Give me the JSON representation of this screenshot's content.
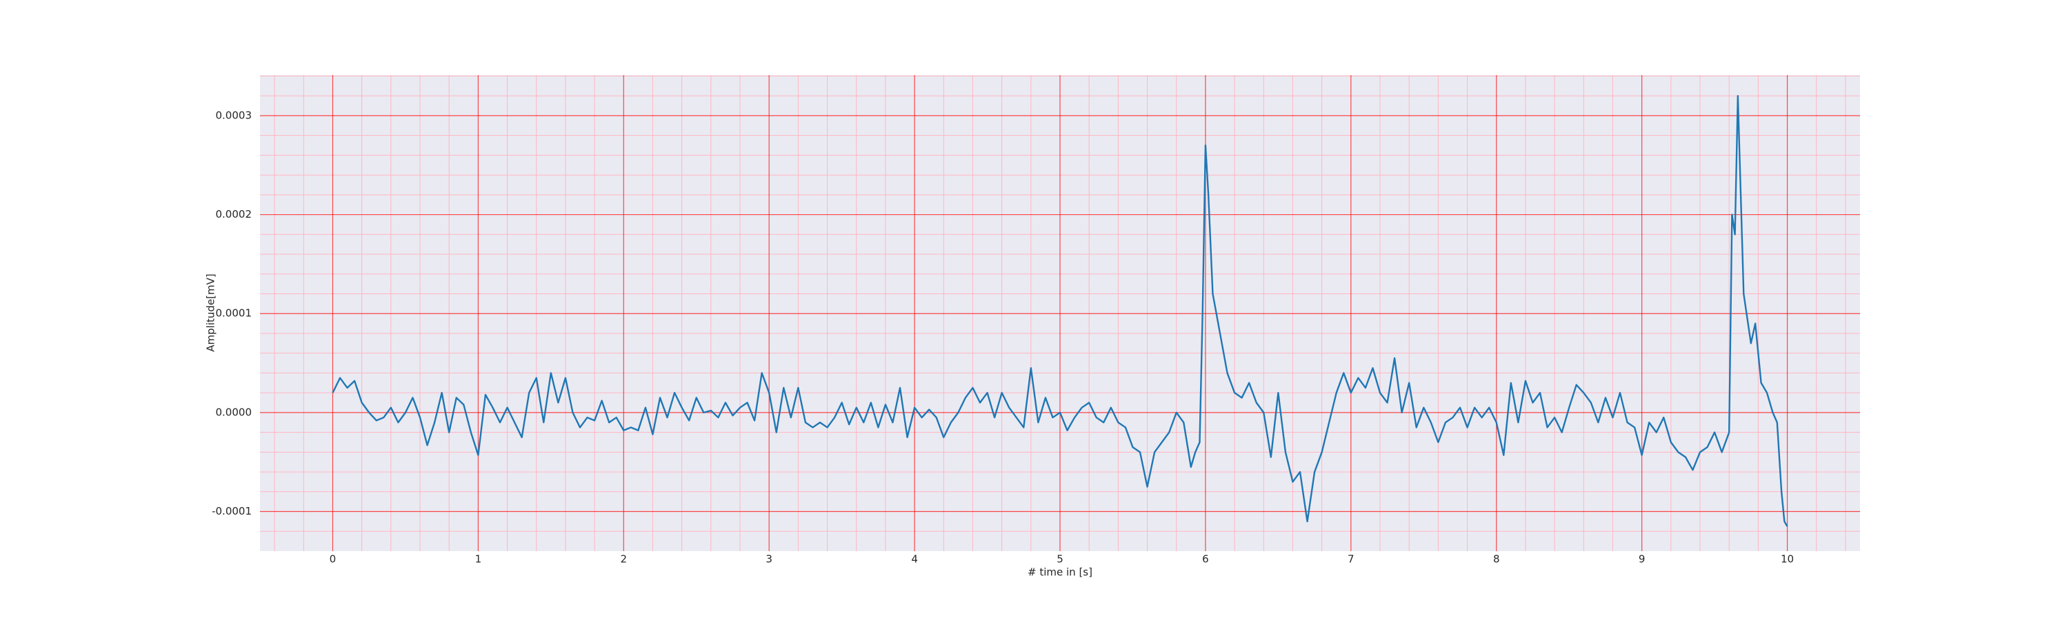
{
  "chart_data": {
    "type": "line",
    "xlabel": "# time in [s]",
    "ylabel": "Amplitude[mV]",
    "x": [
      0,
      0.05,
      0.1,
      0.15,
      0.2,
      0.25,
      0.3,
      0.35,
      0.4,
      0.45,
      0.5,
      0.55,
      0.6,
      0.65,
      0.7,
      0.75,
      0.8,
      0.85,
      0.9,
      0.95,
      1.0,
      1.05,
      1.1,
      1.15,
      1.2,
      1.25,
      1.3,
      1.35,
      1.4,
      1.45,
      1.5,
      1.55,
      1.6,
      1.65,
      1.7,
      1.75,
      1.8,
      1.85,
      1.9,
      1.95,
      2.0,
      2.05,
      2.1,
      2.15,
      2.2,
      2.25,
      2.3,
      2.35,
      2.4,
      2.45,
      2.5,
      2.55,
      2.6,
      2.65,
      2.7,
      2.75,
      2.8,
      2.85,
      2.9,
      2.95,
      3.0,
      3.05,
      3.1,
      3.15,
      3.2,
      3.25,
      3.3,
      3.35,
      3.4,
      3.45,
      3.5,
      3.55,
      3.6,
      3.65,
      3.7,
      3.75,
      3.8,
      3.85,
      3.9,
      3.95,
      4.0,
      4.05,
      4.1,
      4.15,
      4.2,
      4.25,
      4.3,
      4.35,
      4.4,
      4.45,
      4.5,
      4.55,
      4.6,
      4.65,
      4.7,
      4.75,
      4.8,
      4.85,
      4.9,
      4.95,
      5.0,
      5.05,
      5.1,
      5.15,
      5.2,
      5.25,
      5.3,
      5.35,
      5.4,
      5.45,
      5.5,
      5.55,
      5.6,
      5.65,
      5.7,
      5.75,
      5.8,
      5.85,
      5.9,
      5.93,
      5.96,
      5.98,
      6.0,
      6.02,
      6.05,
      6.1,
      6.15,
      6.2,
      6.25,
      6.3,
      6.35,
      6.4,
      6.45,
      6.5,
      6.55,
      6.6,
      6.65,
      6.7,
      6.75,
      6.8,
      6.85,
      6.9,
      6.95,
      7.0,
      7.05,
      7.1,
      7.15,
      7.2,
      7.25,
      7.3,
      7.35,
      7.4,
      7.45,
      7.5,
      7.55,
      7.6,
      7.65,
      7.7,
      7.75,
      7.8,
      7.85,
      7.9,
      7.95,
      8.0,
      8.05,
      8.1,
      8.15,
      8.2,
      8.25,
      8.3,
      8.35,
      8.4,
      8.45,
      8.5,
      8.55,
      8.6,
      8.65,
      8.7,
      8.75,
      8.8,
      8.85,
      8.9,
      8.95,
      9.0,
      9.05,
      9.1,
      9.15,
      9.2,
      9.25,
      9.3,
      9.35,
      9.4,
      9.45,
      9.5,
      9.55,
      9.6,
      9.62,
      9.64,
      9.66,
      9.68,
      9.7,
      9.75,
      9.78,
      9.82,
      9.86,
      9.9,
      9.93,
      9.96,
      9.98,
      10.0
    ],
    "series": [
      {
        "color": "#1f77b4",
        "values": [
          2e-05,
          3.5e-05,
          2.5e-05,
          3.2e-05,
          1e-05,
          0,
          -8e-06,
          -5e-06,
          5e-06,
          -1e-05,
          0,
          1.5e-05,
          -5e-06,
          -3.3e-05,
          -1e-05,
          2e-05,
          -2e-05,
          1.5e-05,
          8e-06,
          -2e-05,
          -4.3e-05,
          1.8e-05,
          5e-06,
          -1e-05,
          5e-06,
          -1e-05,
          -2.5e-05,
          2e-05,
          3.5e-05,
          -1e-05,
          4e-05,
          1e-05,
          3.5e-05,
          0,
          -1.5e-05,
          -5e-06,
          -8e-06,
          1.2e-05,
          -1e-05,
          -5e-06,
          -1.8e-05,
          -1.5e-05,
          -1.8e-05,
          5e-06,
          -2.2e-05,
          1.5e-05,
          -5e-06,
          2e-05,
          5e-06,
          -8e-06,
          1.5e-05,
          0,
          2e-06,
          -5e-06,
          1e-05,
          -3e-06,
          5e-06,
          1e-05,
          -8e-06,
          4e-05,
          2e-05,
          -2e-05,
          2.5e-05,
          -5e-06,
          2.5e-05,
          -1e-05,
          -1.5e-05,
          -1e-05,
          -1.5e-05,
          -5e-06,
          1e-05,
          -1.2e-05,
          5e-06,
          -1e-05,
          1e-05,
          -1.5e-05,
          8e-06,
          -1e-05,
          2.5e-05,
          -2.5e-05,
          5e-06,
          -5e-06,
          3e-06,
          -5e-06,
          -2.5e-05,
          -1e-05,
          0,
          1.5e-05,
          2.5e-05,
          1e-05,
          2e-05,
          -5e-06,
          2e-05,
          5e-06,
          -5e-06,
          -1.5e-05,
          4.5e-05,
          -1e-05,
          1.5e-05,
          -5e-06,
          0,
          -1.8e-05,
          -5e-06,
          5e-06,
          1e-05,
          -5e-06,
          -1e-05,
          5e-06,
          -1e-05,
          -1.5e-05,
          -3.5e-05,
          -4e-05,
          -7.5e-05,
          -4e-05,
          -3e-05,
          -2e-05,
          0,
          -1e-05,
          -5.5e-05,
          -4e-05,
          -3e-05,
          0.0001,
          0.00027,
          0.00022,
          0.00012,
          8e-05,
          4e-05,
          2e-05,
          1.5e-05,
          3e-05,
          1e-05,
          0,
          -4.5e-05,
          2e-05,
          -4e-05,
          -7e-05,
          -6e-05,
          -0.00011,
          -6e-05,
          -4e-05,
          -1e-05,
          2e-05,
          4e-05,
          2e-05,
          3.5e-05,
          2.5e-05,
          4.5e-05,
          2e-05,
          1e-05,
          5.5e-05,
          0,
          3e-05,
          -1.5e-05,
          5e-06,
          -1e-05,
          -3e-05,
          -1e-05,
          -5e-06,
          5e-06,
          -1.5e-05,
          5e-06,
          -5e-06,
          5e-06,
          -1e-05,
          -4.3e-05,
          3e-05,
          -1e-05,
          3.2e-05,
          1e-05,
          2e-05,
          -1.5e-05,
          -5e-06,
          -2e-05,
          5e-06,
          2.8e-05,
          2e-05,
          1e-05,
          -1e-05,
          1.5e-05,
          -5e-06,
          2e-05,
          -1e-05,
          -1.5e-05,
          -4.3e-05,
          -1e-05,
          -2e-05,
          -5e-06,
          -3e-05,
          -4e-05,
          -4.5e-05,
          -5.8e-05,
          -4e-05,
          -3.5e-05,
          -2e-05,
          -4e-05,
          -2e-05,
          0.0002,
          0.00018,
          0.00032,
          0.00022,
          0.00012,
          7e-05,
          9e-05,
          3e-05,
          2e-05,
          0,
          -1e-05,
          -8e-05,
          -0.00011,
          -0.000115
        ]
      }
    ],
    "xlim": [
      -0.5,
      10.5
    ],
    "ylim": [
      -0.00014,
      0.000341
    ],
    "xticks": [
      0,
      1,
      2,
      3,
      4,
      5,
      6,
      7,
      8,
      9,
      10
    ],
    "yticks": [
      -0.0001,
      {
        "value": 0,
        "label": "0.0000"
      },
      0.0001,
      0.0002,
      0.0003
    ],
    "xminorticks": [
      -0.4,
      -0.2,
      0.2,
      0.4,
      0.6,
      0.8,
      1.2,
      1.4,
      1.6,
      1.8,
      2.2,
      2.4,
      2.6,
      2.8,
      3.2,
      3.4,
      3.6,
      3.8,
      4.2,
      4.4,
      4.6,
      4.8,
      5.2,
      5.4,
      5.6,
      5.8,
      6.2,
      6.4,
      6.6,
      6.8,
      7.2,
      7.4,
      7.6,
      7.8,
      8.2,
      8.4,
      8.6,
      8.8,
      9.2,
      9.4,
      9.6,
      9.8,
      10.2,
      10.4
    ],
    "yminorticks": [
      -0.00012,
      -8e-05,
      -6e-05,
      -4e-05,
      -2e-05,
      2e-05,
      4e-05,
      6e-05,
      8e-05,
      0.00012,
      0.00014,
      0.00016,
      0.00018,
      0.00022,
      0.00024,
      0.00026,
      0.00028,
      0.00032,
      0.00034
    ],
    "grid": true,
    "minor_grid": true,
    "grid_color": "#ff0000",
    "minor_grid_color": "#ffb6c1",
    "background": "#eaeaf2"
  }
}
